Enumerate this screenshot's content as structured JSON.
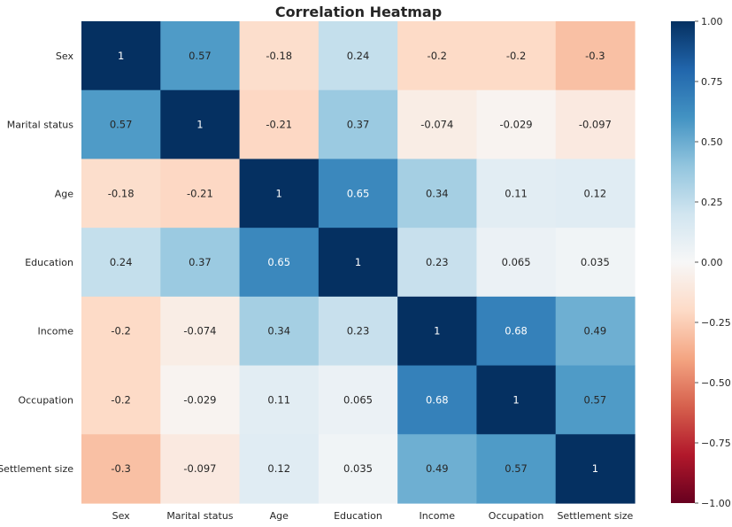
{
  "chart_data": {
    "type": "heatmap",
    "title": "Correlation Heatmap",
    "xlabel": "",
    "ylabel": "",
    "x_labels": [
      "Sex",
      "Marital status",
      "Age",
      "Education",
      "Income",
      "Occupation",
      "Settlement size"
    ],
    "y_labels": [
      "Sex",
      "Marital status",
      "Age",
      "Education",
      "Income",
      "Occupation",
      "Settlement size"
    ],
    "matrix": [
      [
        1,
        0.57,
        -0.18,
        0.24,
        -0.2,
        -0.2,
        -0.3
      ],
      [
        0.57,
        1,
        -0.21,
        0.37,
        -0.074,
        -0.029,
        -0.097
      ],
      [
        -0.18,
        -0.21,
        1,
        0.65,
        0.34,
        0.11,
        0.12
      ],
      [
        0.24,
        0.37,
        0.65,
        1,
        0.23,
        0.065,
        0.035
      ],
      [
        -0.2,
        -0.074,
        0.34,
        0.23,
        1,
        0.68,
        0.49
      ],
      [
        -0.2,
        -0.029,
        0.11,
        0.065,
        0.68,
        1,
        0.57
      ],
      [
        -0.3,
        -0.097,
        0.12,
        0.035,
        0.49,
        0.57,
        1
      ]
    ],
    "cell_labels": [
      [
        "1",
        "0.57",
        "-0.18",
        "0.24",
        "-0.2",
        "-0.2",
        "-0.3"
      ],
      [
        "0.57",
        "1",
        "-0.21",
        "0.37",
        "-0.074",
        "-0.029",
        "-0.097"
      ],
      [
        "-0.18",
        "-0.21",
        "1",
        "0.65",
        "0.34",
        "0.11",
        "0.12"
      ],
      [
        "0.24",
        "0.37",
        "0.65",
        "1",
        "0.23",
        "0.065",
        "0.035"
      ],
      [
        "-0.2",
        "-0.074",
        "0.34",
        "0.23",
        "1",
        "0.68",
        "0.49"
      ],
      [
        "-0.2",
        "-0.029",
        "0.11",
        "0.065",
        "0.68",
        "1",
        "0.57"
      ],
      [
        "-0.3",
        "-0.097",
        "0.12",
        "0.035",
        "0.49",
        "0.57",
        "1"
      ]
    ],
    "colormap": "RdBu",
    "vmin": -1,
    "vmax": 1,
    "colorbar_ticks": [
      "1.00",
      "0.75",
      "0.50",
      "0.25",
      "0.00",
      "−0.25",
      "−0.50",
      "−0.75",
      "−1.00"
    ],
    "colorbar_tick_values": [
      1,
      0.75,
      0.5,
      0.25,
      0,
      -0.25,
      -0.5,
      -0.75,
      -1
    ],
    "colorbar_position": "right"
  }
}
